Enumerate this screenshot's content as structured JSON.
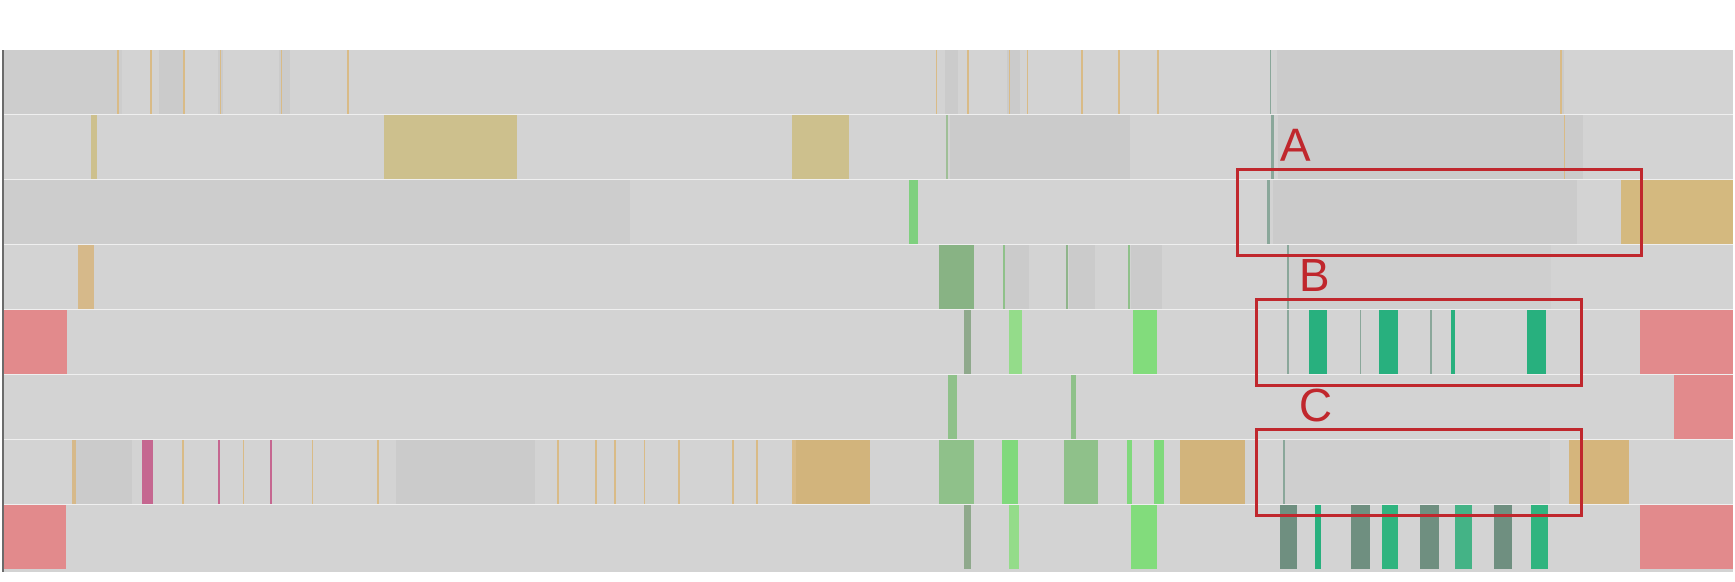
{
  "chart_data": {
    "type": "track-visualization",
    "x_range": [
      0,
      1
    ],
    "rows": 8,
    "palette": {
      "base": "#d3d3d3",
      "shade": "#cbcbcb",
      "tan": "#d2b47c",
      "olive": "#cdc08d",
      "red": "#e28a8c",
      "magenta": "#c56790",
      "green_light": "#7fdc7f",
      "green_mid": "#8fc18a",
      "green_dark": "#6fa77a",
      "teal": "#28b07e",
      "teal_dark": "#6f8f80",
      "thin_line": "#9aa59f"
    },
    "segments": [
      [
        0,
        0.0,
        0.0684,
        "#cdcdcd"
      ],
      [
        0,
        0.0654,
        0.0663,
        "#d9bb87"
      ],
      [
        0,
        0.0845,
        0.0854,
        "#d9bb87"
      ],
      [
        0,
        0.0895,
        0.1036,
        "#cbcbcb"
      ],
      [
        0,
        0.1036,
        0.1047,
        "#d9bb87"
      ],
      [
        0,
        0.1237,
        0.1266,
        "#cbcbcb"
      ],
      [
        0,
        0.1247,
        0.1256,
        "#d9bb87"
      ],
      [
        0,
        0.1589,
        0.1655,
        "#cbcbcb"
      ],
      [
        0,
        0.16,
        0.1609,
        "#d9bb87"
      ],
      [
        0,
        0.1985,
        0.1994,
        "#d9bb87"
      ],
      [
        0,
        0.539,
        0.5399,
        "#d9bb87"
      ],
      [
        0,
        0.544,
        0.552,
        "#cbcbcb"
      ],
      [
        0,
        0.557,
        0.5579,
        "#d9bb87"
      ],
      [
        0,
        0.58,
        0.5879,
        "#cbcbcb"
      ],
      [
        0,
        0.581,
        0.5819,
        "#d9bb87"
      ],
      [
        0,
        0.5915,
        0.5924,
        "#d9bb87"
      ],
      [
        0,
        0.623,
        0.6239,
        "#d9bb87"
      ],
      [
        0,
        0.6445,
        0.6454,
        "#d9bb87"
      ],
      [
        0,
        0.667,
        0.6679,
        "#d9bb87"
      ],
      [
        0,
        0.732,
        0.733,
        "#8aa79a"
      ],
      [
        0,
        0.736,
        0.902,
        "#cbcbcb"
      ],
      [
        0,
        0.9,
        0.9009,
        "#d9bb87"
      ],
      [
        1,
        0.0505,
        0.054,
        "#cdc08d"
      ],
      [
        1,
        0.2195,
        0.297,
        "#cdc08d"
      ],
      [
        1,
        0.456,
        0.4885,
        "#cdc08d"
      ],
      [
        1,
        0.545,
        0.546,
        "#9fbf97"
      ],
      [
        1,
        0.547,
        0.651,
        "#cbcbcb"
      ],
      [
        1,
        0.733,
        0.7345,
        "#8aa79a"
      ],
      [
        1,
        0.737,
        0.913,
        "#cbcbcb"
      ],
      [
        1,
        0.902,
        0.903,
        "#d9bb87"
      ],
      [
        2,
        0.0,
        0.362,
        "#cdcdcd"
      ],
      [
        2,
        0.5235,
        0.5285,
        "#7fd07f"
      ],
      [
        2,
        0.7305,
        0.732,
        "#8aa79a"
      ],
      [
        2,
        0.734,
        0.91,
        "#cbcbcb"
      ],
      [
        2,
        0.935,
        1.0,
        "#d4b97f"
      ],
      [
        3,
        0.043,
        0.052,
        "#d6b98a"
      ],
      [
        3,
        0.541,
        0.561,
        "#88b384"
      ],
      [
        3,
        0.578,
        0.579,
        "#8fc18a"
      ],
      [
        3,
        0.579,
        0.593,
        "#cbcbcb"
      ],
      [
        3,
        0.614,
        0.6155,
        "#8fb58b"
      ],
      [
        3,
        0.616,
        0.631,
        "#cbcbcb"
      ],
      [
        3,
        0.65,
        0.6515,
        "#8fc18a"
      ],
      [
        3,
        0.652,
        0.67,
        "#cbcbcb"
      ],
      [
        3,
        0.742,
        0.743,
        "#8aa79a"
      ],
      [
        3,
        0.781,
        0.782,
        "#8aa79a"
      ],
      [
        3,
        0.822,
        0.823,
        "#8aa79a"
      ],
      [
        3,
        0.863,
        0.864,
        "#8aa79a"
      ],
      [
        3,
        0.743,
        0.895,
        "#cfcfcf"
      ],
      [
        4,
        0.0,
        0.0365,
        "#e28a8c"
      ],
      [
        4,
        0.555,
        0.559,
        "#8fa98c"
      ],
      [
        4,
        0.581,
        0.5885,
        "#94dc8a"
      ],
      [
        4,
        0.653,
        0.667,
        "#82dc7c"
      ],
      [
        4,
        0.742,
        0.743,
        "#8aa79a"
      ],
      [
        4,
        0.755,
        0.765,
        "#28b07e"
      ],
      [
        4,
        0.784,
        0.785,
        "#8aa79a"
      ],
      [
        4,
        0.7955,
        0.8065,
        "#28b07e"
      ],
      [
        4,
        0.825,
        0.826,
        "#8aa79a"
      ],
      [
        4,
        0.837,
        0.8395,
        "#28b07e"
      ],
      [
        4,
        0.881,
        0.892,
        "#28b07e"
      ],
      [
        4,
        0.946,
        1.0,
        "#e28a8c"
      ],
      [
        5,
        0.546,
        0.551,
        "#8fc18a"
      ],
      [
        5,
        0.617,
        0.62,
        "#8fc18a"
      ],
      [
        5,
        0.966,
        1.0,
        "#e28a8c"
      ],
      [
        6,
        0.0395,
        0.0415,
        "#d6b98a"
      ],
      [
        6,
        0.0415,
        0.074,
        "#cbcbcb"
      ],
      [
        6,
        0.08,
        0.086,
        "#c56790"
      ],
      [
        6,
        0.103,
        0.104,
        "#d9bb87"
      ],
      [
        6,
        0.124,
        0.125,
        "#c56790"
      ],
      [
        6,
        0.138,
        0.139,
        "#d9bb87"
      ],
      [
        6,
        0.154,
        0.155,
        "#c56790"
      ],
      [
        6,
        0.178,
        0.179,
        "#d9bb87"
      ],
      [
        6,
        0.216,
        0.217,
        "#d9bb87"
      ],
      [
        6,
        0.227,
        0.228,
        "#d9bb87"
      ],
      [
        6,
        0.227,
        0.307,
        "#cbcbcb"
      ],
      [
        6,
        0.32,
        0.321,
        "#d9bb87"
      ],
      [
        6,
        0.342,
        0.343,
        "#d9bb87"
      ],
      [
        6,
        0.353,
        0.354,
        "#d9bb87"
      ],
      [
        6,
        0.37,
        0.371,
        "#d9bb87"
      ],
      [
        6,
        0.39,
        0.391,
        "#d9bb87"
      ],
      [
        6,
        0.421,
        0.422,
        "#d9bb87"
      ],
      [
        6,
        0.435,
        0.436,
        "#d9bb87"
      ],
      [
        6,
        0.456,
        0.4585,
        "#d9bb87"
      ],
      [
        6,
        0.458,
        0.501,
        "#d2b47c"
      ],
      [
        6,
        0.541,
        0.561,
        "#8fc18a"
      ],
      [
        6,
        0.5775,
        0.5865,
        "#80d97c"
      ],
      [
        6,
        0.613,
        0.633,
        "#8fc18a"
      ],
      [
        6,
        0.6495,
        0.6525,
        "#80d97c"
      ],
      [
        6,
        0.665,
        0.671,
        "#80d97c"
      ],
      [
        6,
        0.68,
        0.718,
        "#d2b47c"
      ],
      [
        6,
        0.74,
        0.741,
        "#8aa79a"
      ],
      [
        6,
        0.781,
        0.782,
        "#8aa79a"
      ],
      [
        6,
        0.823,
        0.824,
        "#8aa79a"
      ],
      [
        6,
        0.864,
        0.865,
        "#8aa79a"
      ],
      [
        6,
        0.741,
        0.894,
        "#cfcfcf"
      ],
      [
        6,
        0.905,
        0.94,
        "#d5b57c"
      ],
      [
        7,
        0.0,
        0.036,
        "#e28a8c"
      ],
      [
        7,
        0.555,
        0.559,
        "#8fa98c"
      ],
      [
        7,
        0.581,
        0.587,
        "#94dc8a"
      ],
      [
        7,
        0.652,
        0.667,
        "#82dc7c"
      ],
      [
        7,
        0.738,
        0.748,
        "#6f8f80"
      ],
      [
        7,
        0.758,
        0.762,
        "#28b07e"
      ],
      [
        7,
        0.779,
        0.79,
        "#6f8f80"
      ],
      [
        7,
        0.797,
        0.806,
        "#2fb47f"
      ],
      [
        7,
        0.819,
        0.83,
        "#6f8f80"
      ],
      [
        7,
        0.839,
        0.849,
        "#44b386"
      ],
      [
        7,
        0.862,
        0.872,
        "#6f8f80"
      ],
      [
        7,
        0.883,
        0.893,
        "#2fb47f"
      ],
      [
        7,
        0.946,
        1.0,
        "#e28a8c"
      ]
    ],
    "callouts": [
      {
        "label": "A",
        "row_start": 2,
        "row_end": 2,
        "x0": 0.7125,
        "x1": 0.948
      },
      {
        "label": "B",
        "row_start": 4,
        "row_end": 4,
        "x0": 0.7235,
        "x1": 0.913
      },
      {
        "label": "C",
        "row_start": 6,
        "row_end": 6,
        "x0": 0.7235,
        "x1": 0.913
      }
    ]
  }
}
